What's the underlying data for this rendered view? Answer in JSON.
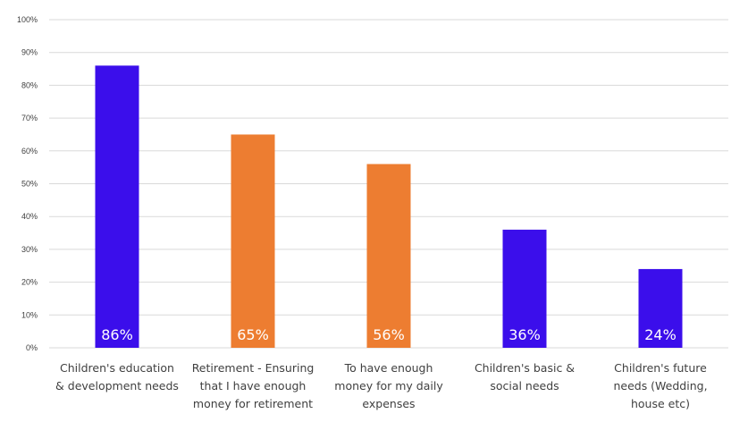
{
  "chart_data": {
    "type": "bar",
    "title": "",
    "xlabel": "",
    "ylabel": "",
    "ylim": [
      0,
      1
    ],
    "yticks": [
      "0%",
      "10%",
      "20%",
      "30%",
      "40%",
      "50%",
      "60%",
      "70%",
      "80%",
      "90%",
      "100%"
    ],
    "grid": true,
    "legend": "none",
    "categories": [
      [
        "Children's education",
        "& development needs"
      ],
      [
        "Retirement - Ensuring",
        "that I have enough",
        "money for retirement"
      ],
      [
        "To have enough",
        "money for my daily",
        "expenses"
      ],
      [
        "Children's basic &",
        "social needs"
      ],
      [
        "Children's future",
        "needs (Wedding,",
        "house etc)"
      ]
    ],
    "values": [
      0.86,
      0.65,
      0.56,
      0.36,
      0.24
    ],
    "data_labels": [
      "86%",
      "65%",
      "56%",
      "36%",
      "24%"
    ],
    "colors": [
      "#3b0eeb",
      "#ed7d31",
      "#ed7d31",
      "#3b0eeb",
      "#3b0eeb"
    ]
  }
}
